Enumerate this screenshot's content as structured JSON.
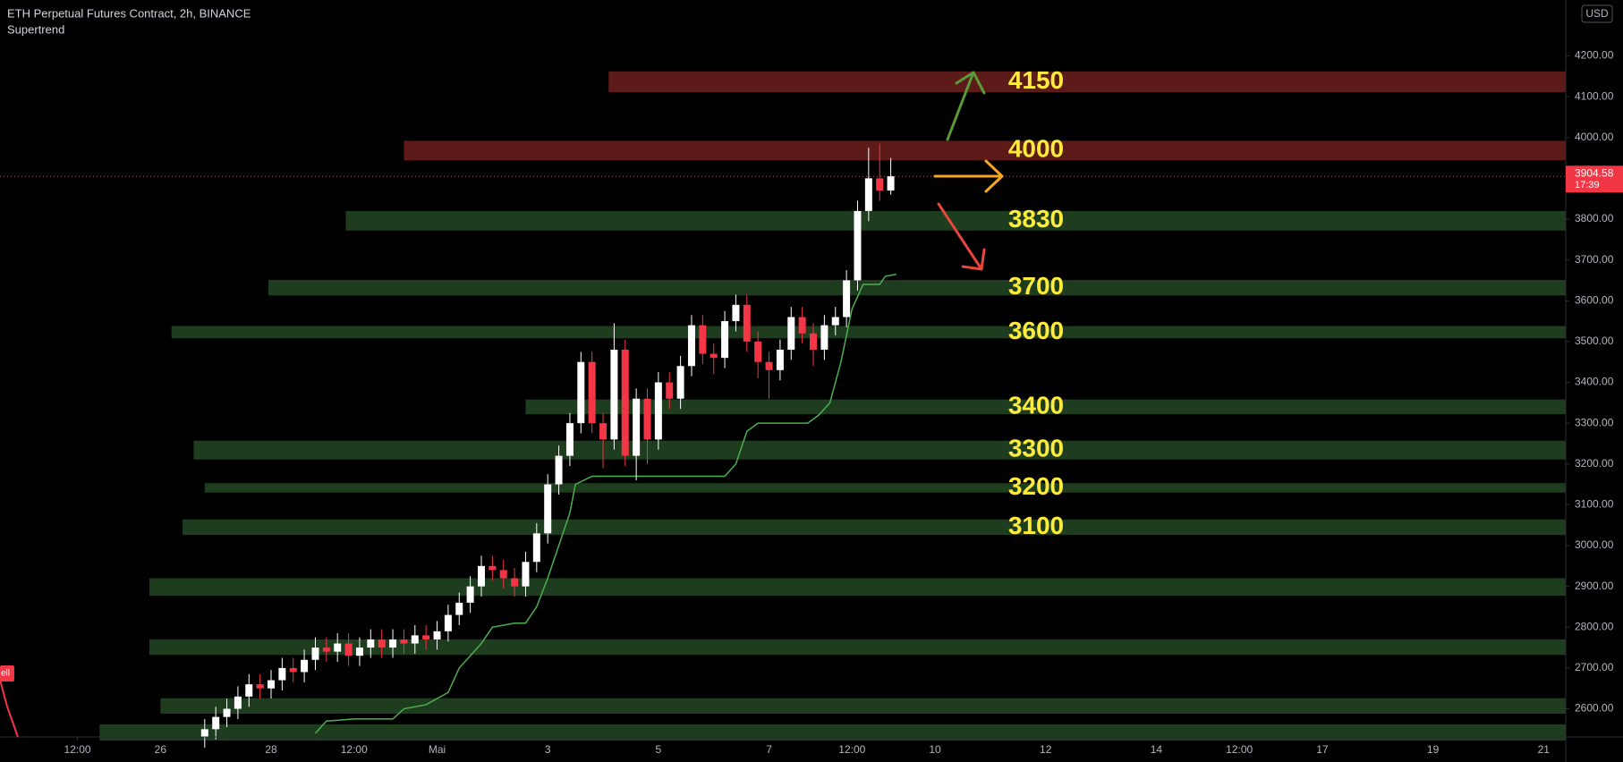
{
  "chart_data": {
    "type": "candlestick",
    "title": "ETH Perpetual Futures Contract, 2h, BINANCE",
    "indicator": "Supertrend",
    "currency": "USD",
    "up_color": "#ffffff",
    "down_color": "#f23645",
    "x": [
      26.8,
      27.0,
      27.2,
      27.4,
      27.6,
      27.8,
      28.0,
      28.2,
      28.4,
      28.6,
      28.8,
      29.0,
      29.2,
      29.4,
      29.6,
      29.8,
      30.0,
      30.2,
      30.4,
      30.6,
      30.8,
      31.0,
      31.2,
      31.4,
      31.6,
      31.8,
      32.0,
      32.2,
      32.4,
      32.6,
      32.8,
      33.0,
      33.2,
      33.4,
      33.6,
      33.8,
      34.0,
      34.2,
      34.4,
      34.6,
      34.8,
      35.0,
      35.2,
      35.4,
      35.6,
      35.8,
      36.0,
      36.2,
      36.4,
      36.6,
      36.8,
      37.0,
      37.2,
      37.4,
      37.6,
      37.8,
      38.0,
      38.2,
      38.4,
      38.6,
      38.8,
      39.0,
      39.2
    ],
    "open": [
      2530,
      2550,
      2580,
      2600,
      2630,
      2660,
      2650,
      2670,
      2700,
      2690,
      2720,
      2750,
      2740,
      2760,
      2730,
      2750,
      2770,
      2750,
      2770,
      2760,
      2780,
      2770,
      2790,
      2830,
      2860,
      2900,
      2950,
      2940,
      2920,
      2900,
      2960,
      3030,
      3150,
      3220,
      3300,
      3450,
      3300,
      3260,
      3480,
      3220,
      3360,
      3260,
      3400,
      3360,
      3440,
      3540,
      3470,
      3460,
      3550,
      3590,
      3500,
      3450,
      3430,
      3480,
      3560,
      3520,
      3480,
      3540,
      3560,
      3650,
      3820,
      3900,
      3870
    ],
    "high": [
      2575,
      2605,
      2625,
      2655,
      2685,
      2685,
      2695,
      2725,
      2725,
      2745,
      2775,
      2775,
      2785,
      2785,
      2775,
      2795,
      2795,
      2795,
      2795,
      2805,
      2805,
      2815,
      2855,
      2885,
      2925,
      2975,
      2975,
      2965,
      2945,
      2985,
      3055,
      3175,
      3245,
      3325,
      3475,
      3475,
      3325,
      3545,
      3505,
      3385,
      3385,
      3425,
      3425,
      3465,
      3565,
      3565,
      3495,
      3575,
      3615,
      3615,
      3525,
      3475,
      3505,
      3585,
      3585,
      3545,
      3565,
      3585,
      3675,
      3845,
      3975,
      3985,
      3950
    ],
    "low": [
      2505,
      2525,
      2555,
      2575,
      2605,
      2625,
      2625,
      2645,
      2665,
      2665,
      2695,
      2715,
      2715,
      2705,
      2705,
      2725,
      2725,
      2725,
      2735,
      2735,
      2745,
      2745,
      2765,
      2805,
      2835,
      2875,
      2915,
      2895,
      2875,
      2875,
      2935,
      3005,
      3125,
      3195,
      3275,
      3275,
      3190,
      3235,
      3195,
      3160,
      3200,
      3235,
      3335,
      3335,
      3415,
      3445,
      3420,
      3435,
      3525,
      3475,
      3410,
      3360,
      3405,
      3455,
      3495,
      3440,
      3455,
      3515,
      3535,
      3625,
      3795,
      3845,
      3860
    ],
    "close": [
      2550,
      2580,
      2600,
      2630,
      2660,
      2650,
      2670,
      2700,
      2690,
      2720,
      2750,
      2740,
      2760,
      2730,
      2750,
      2770,
      2750,
      2770,
      2760,
      2780,
      2770,
      2790,
      2830,
      2860,
      2900,
      2950,
      2940,
      2920,
      2900,
      2960,
      3030,
      3150,
      3220,
      3300,
      3450,
      3300,
      3260,
      3480,
      3220,
      3360,
      3260,
      3400,
      3360,
      3440,
      3540,
      3470,
      3460,
      3550,
      3590,
      3500,
      3450,
      3430,
      3480,
      3560,
      3520,
      3480,
      3540,
      3560,
      3650,
      3820,
      3900,
      3870,
      3905
    ],
    "supertrend": {
      "color": "#4caf50",
      "x": [
        28.8,
        29.0,
        29.5,
        30.2,
        30.4,
        30.8,
        31.2,
        31.4,
        31.6,
        31.8,
        32.0,
        32.4,
        32.6,
        32.8,
        33.0,
        33.2,
        33.4,
        33.5,
        33.8,
        35.0,
        36.2,
        36.4,
        36.6,
        36.8,
        37.7,
        37.9,
        38.1,
        38.3,
        38.5,
        38.7,
        39.0,
        39.1,
        39.3
      ],
      "values": [
        2540,
        2570,
        2575,
        2575,
        2600,
        2610,
        2640,
        2700,
        2730,
        2760,
        2800,
        2810,
        2810,
        2850,
        2920,
        3000,
        3080,
        3150,
        3170,
        3170,
        3170,
        3200,
        3280,
        3300,
        3300,
        3320,
        3350,
        3450,
        3580,
        3640,
        3640,
        3660,
        3665
      ]
    },
    "zones": [
      {
        "low": 4111,
        "high": 4162,
        "x_start": 34.1,
        "color": "#5c1a18",
        "label": "4150"
      },
      {
        "low": 3944,
        "high": 3992,
        "x_start": 30.4,
        "color": "#5c1a18",
        "label": "4000"
      },
      {
        "low": 3772,
        "high": 3820,
        "x_start": 29.35,
        "color": "#1d3d1e",
        "label": "3830"
      },
      {
        "low": 3613,
        "high": 3651,
        "x_start": 27.95,
        "color": "#1d3d1e",
        "label": "3700"
      },
      {
        "low": 3508,
        "high": 3538,
        "x_start": 26.2,
        "color": "#1d3d1e",
        "label": "3600"
      },
      {
        "low": 3322,
        "high": 3358,
        "x_start": 32.6,
        "color": "#1d3d1e",
        "label": "3400"
      },
      {
        "low": 3211,
        "high": 3257,
        "x_start": 26.6,
        "color": "#1d3d1e",
        "label": "3300"
      },
      {
        "low": 3130,
        "high": 3153,
        "x_start": 26.8,
        "color": "#1d3d1e",
        "label": "3200"
      },
      {
        "low": 3026,
        "high": 3064,
        "x_start": 26.4,
        "color": "#1d3d1e",
        "label": "3100"
      },
      {
        "low": 2877,
        "high": 2920,
        "x_start": 25.8,
        "color": "#1d3d1e"
      },
      {
        "low": 2732,
        "high": 2770,
        "x_start": 25.8,
        "color": "#1d3d1e"
      },
      {
        "low": 2588,
        "high": 2626,
        "x_start": 26.0,
        "color": "#1d3d1e"
      },
      {
        "low": 2522,
        "high": 2562,
        "x_start": 24.9,
        "color": "#1d3d1e"
      }
    ],
    "label_color": "#ffeb3b",
    "current_price": {
      "value": 3904.58,
      "countdown": "17:39",
      "color": "#f23645"
    },
    "signal": {
      "text": "ell",
      "color": "#f23645"
    },
    "xlim": [
      23.1,
      51.4
    ],
    "ylim": [
      2531,
      4337
    ],
    "xticks": [
      {
        "value": 24.5,
        "label": "12:00"
      },
      26,
      28,
      {
        "value": 29.5,
        "label": "12:00"
      },
      {
        "value": 31,
        "label": "Mai"
      },
      {
        "value": 33,
        "label": "3"
      },
      {
        "value": 35,
        "label": "5"
      },
      {
        "value": 37,
        "label": "7"
      },
      {
        "value": 38.5,
        "label": "12:00"
      },
      {
        "value": 40,
        "label": "10"
      },
      {
        "value": 42,
        "label": "12"
      },
      {
        "value": 44,
        "label": "14"
      },
      {
        "value": 45.5,
        "label": "12:00"
      },
      {
        "value": 47,
        "label": "17"
      },
      {
        "value": 49,
        "label": "19"
      },
      {
        "value": 51,
        "label": "21"
      }
    ],
    "yticks": [
      {
        "value": 2600,
        "label": "2600.00"
      },
      {
        "value": 2700,
        "label": "2700.00"
      },
      {
        "value": 2800,
        "label": "2800.00"
      },
      {
        "value": 2900,
        "label": "2900.00"
      },
      {
        "value": 3000,
        "label": "3000.00"
      },
      {
        "value": 3100,
        "label": "3100.00"
      },
      {
        "value": 3200,
        "label": "3200.00"
      },
      {
        "value": 3300,
        "label": "3300.00"
      },
      {
        "value": 3400,
        "label": "3400.00"
      },
      {
        "value": 3500,
        "label": "3500.00"
      },
      {
        "value": 3600,
        "label": "3600.00"
      },
      {
        "value": 3700,
        "label": "3700.00"
      },
      {
        "value": 3800,
        "label": "3800.00"
      },
      {
        "value": 3900,
        "label": "3900.00"
      },
      {
        "value": 4000,
        "label": "4000.00"
      },
      {
        "value": 4100,
        "label": "4100.00"
      },
      {
        "value": 4200,
        "label": "4200.00"
      }
    ],
    "grid": false
  }
}
